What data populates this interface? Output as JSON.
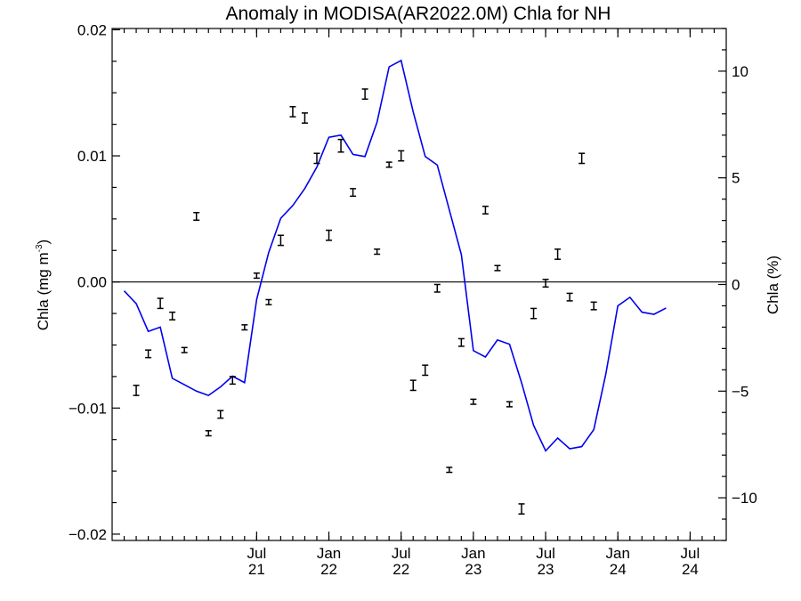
{
  "chart_data": {
    "type": "line",
    "title": "Anomaly in MODISA(AR2022.0M) Chla for NH",
    "ylabel_left": "Chla (mg m",
    "ylabel_left_sup": "-3",
    "ylabel_left_close": ")",
    "ylabel_right": "Chla (%)",
    "ylim_left": [
      -0.0205,
      0.0201
    ],
    "ylim_right": [
      -12.0,
      12.0
    ],
    "y_left_ticks": [
      {
        "v": 0.02,
        "label": "0.02"
      },
      {
        "v": 0.01,
        "label": "0.01"
      },
      {
        "v": 0.0,
        "label": "0.00"
      },
      {
        "v": -0.01,
        "label": "−0.01"
      },
      {
        "v": -0.02,
        "label": "−0.02"
      }
    ],
    "y_right_ticks": [
      {
        "v": 10,
        "label": "10"
      },
      {
        "v": 5,
        "label": "5"
      },
      {
        "v": 0,
        "label": "0"
      },
      {
        "v": -5,
        "label": "−5"
      },
      {
        "v": -10,
        "label": "−10"
      }
    ],
    "x_axis": {
      "start": "2020-07",
      "end": "2024-10",
      "tick_labels": [
        {
          "month": "2021-07",
          "line1": "Jul",
          "line2": "21"
        },
        {
          "month": "2022-01",
          "line1": "Jan",
          "line2": "22"
        },
        {
          "month": "2022-07",
          "line1": "Jul",
          "line2": "22"
        },
        {
          "month": "2023-01",
          "line1": "Jan",
          "line2": "23"
        },
        {
          "month": "2023-07",
          "line1": "Jul",
          "line2": "23"
        },
        {
          "month": "2024-01",
          "line1": "Jan",
          "line2": "24"
        },
        {
          "month": "2024-07",
          "line1": "Jul",
          "line2": "24"
        }
      ]
    },
    "zero_line": true,
    "series": [
      {
        "style": "line",
        "axis": "right",
        "color": "#0000ee",
        "points": [
          {
            "x": "2020-08",
            "y": -0.3
          },
          {
            "x": "2020-09",
            "y": -0.9
          },
          {
            "x": "2020-10",
            "y": -2.2
          },
          {
            "x": "2020-11",
            "y": -2.0
          },
          {
            "x": "2020-12",
            "y": -4.4
          },
          {
            "x": "2021-01",
            "y": -4.7
          },
          {
            "x": "2021-02",
            "y": -5.0
          },
          {
            "x": "2021-03",
            "y": -5.2
          },
          {
            "x": "2021-04",
            "y": -4.8
          },
          {
            "x": "2021-05",
            "y": -4.3
          },
          {
            "x": "2021-06",
            "y": -4.6
          },
          {
            "x": "2021-07",
            "y": -0.7
          },
          {
            "x": "2021-08",
            "y": 1.5
          },
          {
            "x": "2021-09",
            "y": 3.1
          },
          {
            "x": "2021-10",
            "y": 3.7
          },
          {
            "x": "2021-11",
            "y": 4.5
          },
          {
            "x": "2021-12",
            "y": 5.5
          },
          {
            "x": "2022-01",
            "y": 6.9
          },
          {
            "x": "2022-02",
            "y": 7.0
          },
          {
            "x": "2022-03",
            "y": 6.1
          },
          {
            "x": "2022-04",
            "y": 6.0
          },
          {
            "x": "2022-05",
            "y": 7.6
          },
          {
            "x": "2022-06",
            "y": 10.2
          },
          {
            "x": "2022-07",
            "y": 10.5
          },
          {
            "x": "2022-08",
            "y": 8.1
          },
          {
            "x": "2022-09",
            "y": 6.0
          },
          {
            "x": "2022-10",
            "y": 5.6
          },
          {
            "x": "2022-11",
            "y": 3.5
          },
          {
            "x": "2022-12",
            "y": 1.4
          },
          {
            "x": "2023-01",
            "y": -3.1
          },
          {
            "x": "2023-02",
            "y": -3.4
          },
          {
            "x": "2023-03",
            "y": -2.6
          },
          {
            "x": "2023-04",
            "y": -2.8
          },
          {
            "x": "2023-05",
            "y": -4.6
          },
          {
            "x": "2023-06",
            "y": -6.6
          },
          {
            "x": "2023-07",
            "y": -7.8
          },
          {
            "x": "2023-08",
            "y": -7.2
          },
          {
            "x": "2023-09",
            "y": -7.7
          },
          {
            "x": "2023-10",
            "y": -7.6
          },
          {
            "x": "2023-11",
            "y": -6.8
          },
          {
            "x": "2023-12",
            "y": -4.2
          },
          {
            "x": "2024-01",
            "y": -1.0
          },
          {
            "x": "2024-02",
            "y": -0.6
          },
          {
            "x": "2024-03",
            "y": -1.3
          },
          {
            "x": "2024-04",
            "y": -1.4
          },
          {
            "x": "2024-05",
            "y": -1.1
          }
        ]
      },
      {
        "style": "errorbar",
        "axis": "left",
        "color": "#000000",
        "points": [
          {
            "x": "2020-09",
            "y": -0.0086,
            "err": 0.0004
          },
          {
            "x": "2020-10",
            "y": -0.0057,
            "err": 0.0003
          },
          {
            "x": "2020-11",
            "y": -0.0017,
            "err": 0.0004
          },
          {
            "x": "2020-12",
            "y": -0.0027,
            "err": 0.0003
          },
          {
            "x": "2021-01",
            "y": -0.0054,
            "err": 0.0002
          },
          {
            "x": "2021-02",
            "y": 0.0052,
            "err": 0.0003
          },
          {
            "x": "2021-03",
            "y": -0.012,
            "err": 0.0002
          },
          {
            "x": "2021-04",
            "y": -0.0105,
            "err": 0.0003
          },
          {
            "x": "2021-05",
            "y": -0.0078,
            "err": 0.0003
          },
          {
            "x": "2021-06",
            "y": -0.0036,
            "err": 0.0002
          },
          {
            "x": "2021-07",
            "y": 0.0005,
            "err": 0.0002
          },
          {
            "x": "2021-08",
            "y": -0.0016,
            "err": 0.0002
          },
          {
            "x": "2021-09",
            "y": 0.0033,
            "err": 0.0004
          },
          {
            "x": "2021-10",
            "y": 0.0135,
            "err": 0.0004
          },
          {
            "x": "2021-11",
            "y": 0.013,
            "err": 0.0004
          },
          {
            "x": "2021-12",
            "y": 0.0098,
            "err": 0.0004
          },
          {
            "x": "2022-01",
            "y": 0.0037,
            "err": 0.0004
          },
          {
            "x": "2022-02",
            "y": 0.0108,
            "err": 0.0005
          },
          {
            "x": "2022-03",
            "y": 0.0071,
            "err": 0.0003
          },
          {
            "x": "2022-04",
            "y": 0.0149,
            "err": 0.0004
          },
          {
            "x": "2022-05",
            "y": 0.0024,
            "err": 0.0002
          },
          {
            "x": "2022-06",
            "y": 0.0093,
            "err": 0.0002
          },
          {
            "x": "2022-07",
            "y": 0.01,
            "err": 0.0004
          },
          {
            "x": "2022-08",
            "y": -0.0082,
            "err": 0.0004
          },
          {
            "x": "2022-09",
            "y": -0.007,
            "err": 0.0004
          },
          {
            "x": "2022-10",
            "y": -0.0005,
            "err": 0.0003
          },
          {
            "x": "2022-11",
            "y": -0.0149,
            "err": 0.0002
          },
          {
            "x": "2022-12",
            "y": -0.0048,
            "err": 0.0003
          },
          {
            "x": "2023-01",
            "y": -0.0095,
            "err": 0.0002
          },
          {
            "x": "2023-02",
            "y": 0.0057,
            "err": 0.0003
          },
          {
            "x": "2023-03",
            "y": 0.0011,
            "err": 0.0002
          },
          {
            "x": "2023-04",
            "y": -0.0097,
            "err": 0.0002
          },
          {
            "x": "2023-05",
            "y": -0.018,
            "err": 0.0004
          },
          {
            "x": "2023-06",
            "y": -0.0025,
            "err": 0.0004
          },
          {
            "x": "2023-07",
            "y": -0.0001,
            "err": 0.0003
          },
          {
            "x": "2023-08",
            "y": 0.0022,
            "err": 0.0004
          },
          {
            "x": "2023-09",
            "y": -0.0012,
            "err": 0.0003
          },
          {
            "x": "2023-10",
            "y": 0.0098,
            "err": 0.0004
          },
          {
            "x": "2023-11",
            "y": -0.0019,
            "err": 0.0003
          }
        ]
      }
    ]
  }
}
